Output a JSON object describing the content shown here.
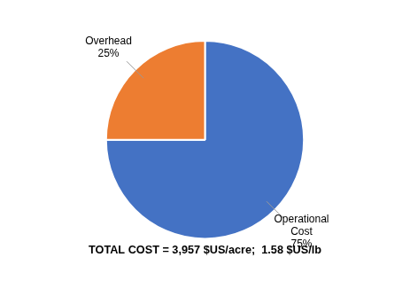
{
  "chart_data": {
    "type": "pie",
    "title": "TOTAL COST = 3,957 $US/acre;  1.58 $US/lb",
    "categories": [
      "Operational\nCost",
      "Overhead"
    ],
    "values": [
      75,
      25
    ],
    "value_labels": [
      "75%",
      "25%"
    ],
    "data_labels": true,
    "colors": [
      "#4472C4",
      "#ED7D31"
    ]
  }
}
